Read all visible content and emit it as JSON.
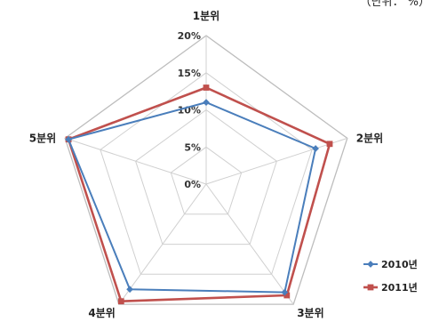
{
  "header": {
    "note": "（단위： %）"
  },
  "chart_data": {
    "type": "radar",
    "categories": [
      "1분위",
      "2분위",
      "3분위",
      "4분위",
      "5분위"
    ],
    "ticks": [
      "0%",
      "5%",
      "10%",
      "15%",
      "20%"
    ],
    "rlim": [
      0,
      20
    ],
    "grid": true,
    "legend_position": "bottom-right",
    "series": [
      {
        "name": "2010년",
        "color": "#4a7ebb",
        "marker": "diamond",
        "values": [
          11,
          15.5,
          18,
          17.5,
          19.5
        ]
      },
      {
        "name": "2011년",
        "color": "#c0504d",
        "marker": "square",
        "values": [
          13,
          17.5,
          18.5,
          19.5,
          19.5
        ]
      }
    ]
  }
}
